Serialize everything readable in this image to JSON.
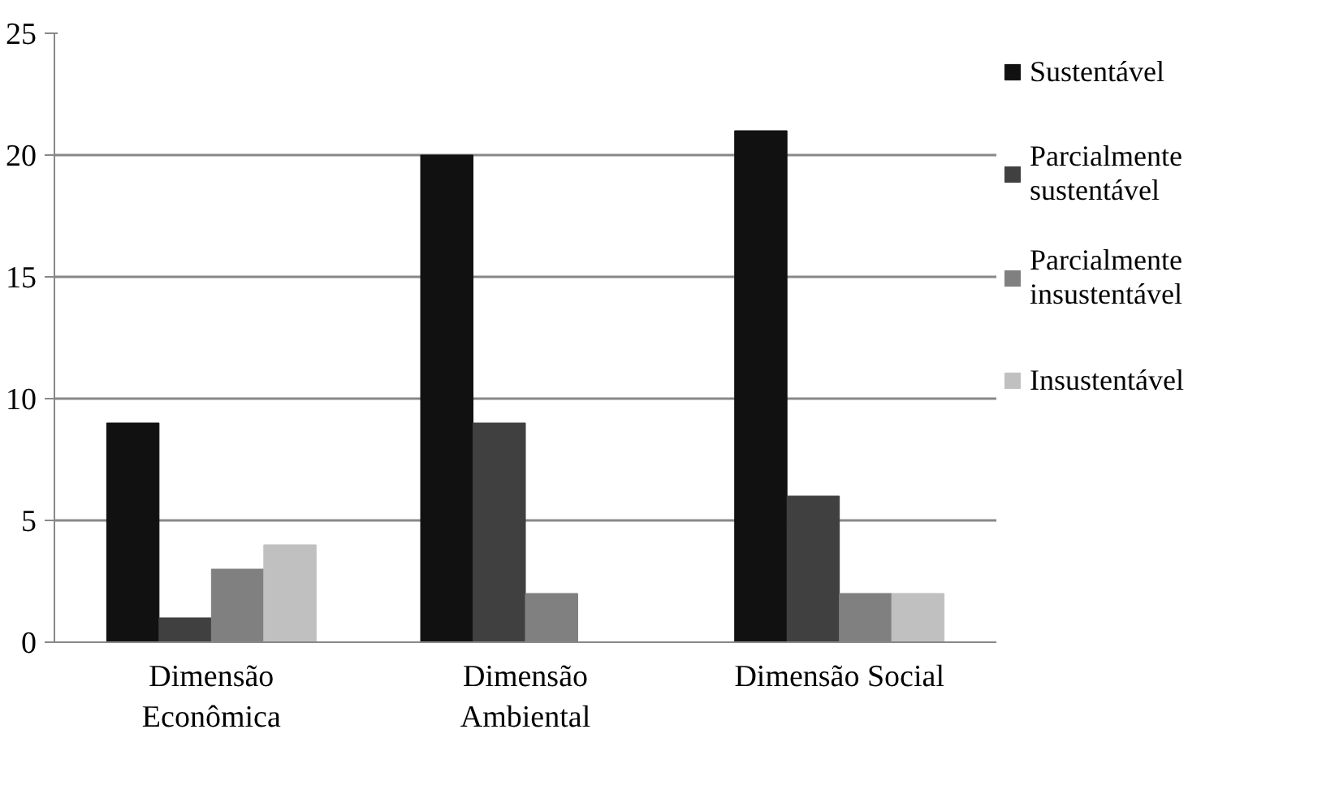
{
  "chart_data": {
    "type": "bar",
    "categories": [
      "Dimensão\nEconômica",
      "Dimensão\nAmbiental",
      "Dimensão Social"
    ],
    "series": [
      {
        "name": "Sustentável",
        "color": "#111111",
        "values": [
          9,
          20,
          21
        ]
      },
      {
        "name": "Parcialmente\nsustentável",
        "color": "#404040",
        "values": [
          1,
          9,
          6
        ]
      },
      {
        "name": "Parcialmente\ninsustentável",
        "color": "#808080",
        "values": [
          3,
          2,
          2
        ]
      },
      {
        "name": "Insustentável",
        "color": "#c0c0c0",
        "values": [
          4,
          0,
          2
        ]
      }
    ],
    "ylim": [
      0,
      25
    ],
    "yticks": [
      0,
      5,
      10,
      15,
      20,
      25
    ],
    "grid": "y",
    "legend": "right"
  }
}
